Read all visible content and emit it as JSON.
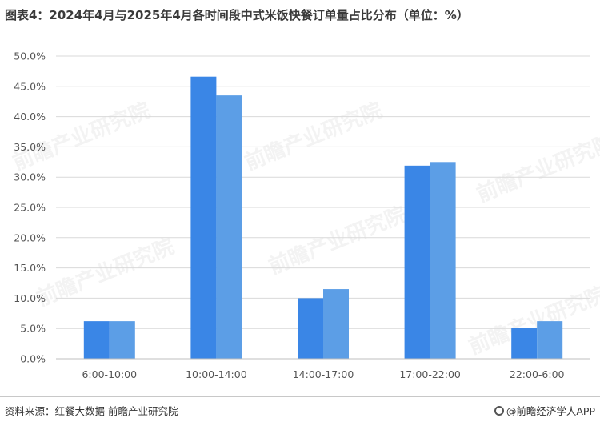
{
  "header": {
    "title": "图表4：2024年4月与2025年4月各时间段中式米饭快餐订单量占比分布（单位：%）"
  },
  "footer": {
    "source": "资料来源：红餐大数据  前瞻产业研究院",
    "brand": "@前瞻经济学人APP"
  },
  "watermark": {
    "text": "前瞻产业研究院"
  },
  "chart_data": {
    "type": "bar",
    "title": "图表4：2024年4月与2025年4月各时间段中式米饭快餐订单量占比分布（单位：%）",
    "xlabel": "",
    "ylabel": "",
    "categories": [
      "6:00-10:00",
      "10:00-14:00",
      "14:00-17:00",
      "17:00-22:00",
      "22:00-6:00"
    ],
    "series": [
      {
        "values": [
          6.2,
          46.6,
          10.0,
          31.9,
          5.1
        ],
        "color": "#3a86e6"
      },
      {
        "values": [
          6.2,
          43.5,
          11.5,
          32.5,
          6.2
        ],
        "color": "#5c9ee6"
      }
    ],
    "ylim": [
      0,
      50
    ],
    "yticks": [
      "0.0%",
      "5.0%",
      "10.0%",
      "15.0%",
      "20.0%",
      "25.0%",
      "30.0%",
      "35.0%",
      "40.0%",
      "45.0%",
      "50.0%"
    ],
    "grid": true,
    "legend": "none"
  }
}
